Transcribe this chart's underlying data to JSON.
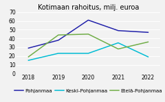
{
  "title": "Kotimaan rahoitus, milj. euroa",
  "years": [
    2018,
    2019,
    2020,
    2021,
    2022
  ],
  "series": [
    {
      "label": "Pohjanmaa",
      "color": "#2222aa",
      "values": [
        29,
        38,
        61,
        49,
        47
      ]
    },
    {
      "label": "Keski-Pohjanmaa",
      "color": "#00bcd4",
      "values": [
        15,
        23,
        23,
        35,
        19
      ]
    },
    {
      "label": "Etelä-Pohjanmaa",
      "color": "#70ad47",
      "values": [
        19,
        44,
        45,
        28,
        36
      ]
    }
  ],
  "ylim": [
    0,
    70
  ],
  "yticks": [
    0,
    10,
    20,
    30,
    40,
    50,
    60,
    70
  ],
  "background_color": "#f2f2f2",
  "title_fontsize": 7.0,
  "tick_fontsize": 5.5,
  "legend_fontsize": 5.2
}
